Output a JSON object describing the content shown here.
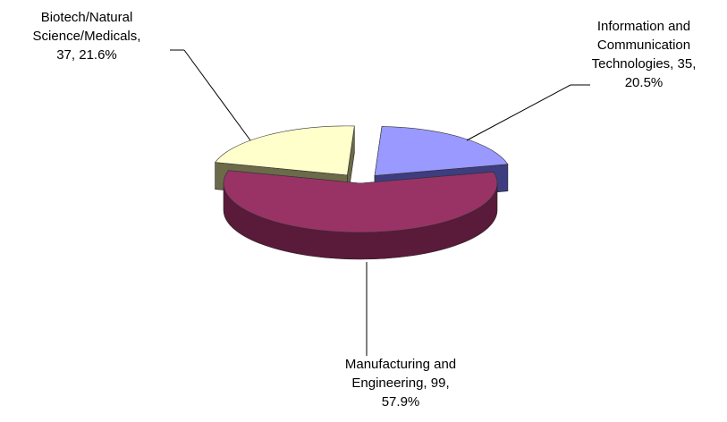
{
  "chart_data": {
    "type": "pie",
    "title": "",
    "slices": [
      {
        "name": "Information and Communication Technologies",
        "value": 35,
        "percent": "20.5%",
        "label_lines": [
          "Information and",
          "Communication",
          "Technologies, 35,",
          "20.5%"
        ],
        "color": "#9999ff",
        "side_color": "#3d3d80",
        "exploded": true
      },
      {
        "name": "Manufacturing and Engineering",
        "value": 99,
        "percent": "57.9%",
        "label_lines": [
          "Manufacturing and",
          "Engineering, 99,",
          "57.9%"
        ],
        "color": "#993366",
        "side_color": "#5a1a3a",
        "exploded": false
      },
      {
        "name": "Biotech/Natural Science/Medicals",
        "value": 37,
        "percent": "21.6%",
        "label_lines": [
          "Biotech/Natural",
          "Science/Medicals,",
          "37, 21.6%"
        ],
        "color": "#ffffcc",
        "side_color": "#6b6b4a",
        "exploded": true
      }
    ],
    "legend": "none",
    "style": "3d-exploded"
  }
}
